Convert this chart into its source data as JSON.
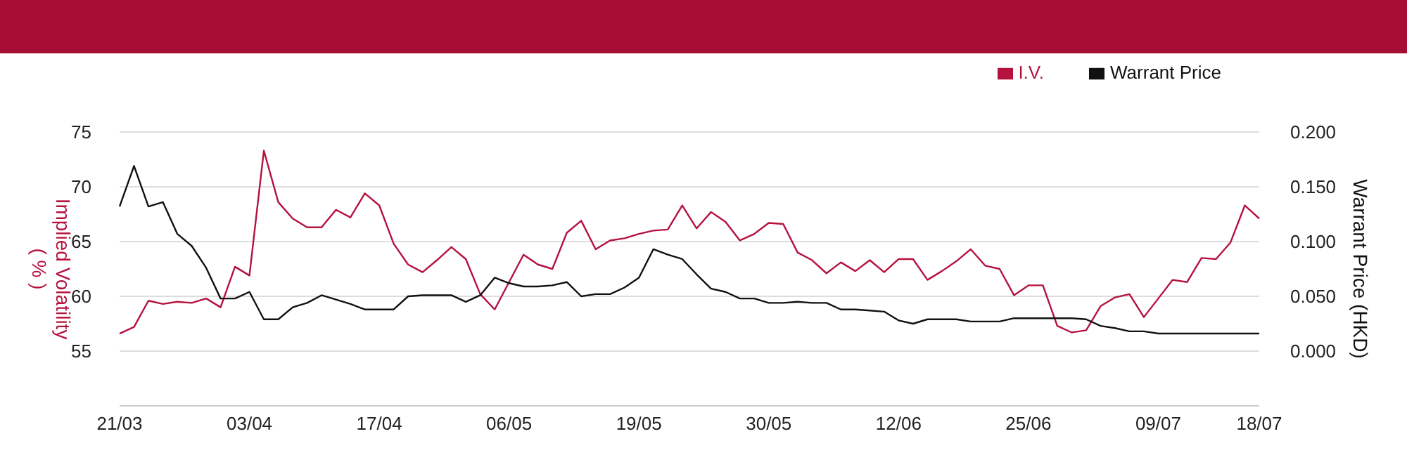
{
  "chart_data": {
    "type": "line",
    "categories": [
      "21/03",
      null,
      null,
      null,
      null,
      null,
      null,
      null,
      null,
      "03/04",
      null,
      null,
      null,
      null,
      null,
      null,
      null,
      null,
      "17/04",
      null,
      null,
      null,
      null,
      null,
      null,
      null,
      null,
      "06/05",
      null,
      null,
      null,
      null,
      null,
      null,
      null,
      null,
      "19/05",
      null,
      null,
      null,
      null,
      null,
      null,
      null,
      null,
      "30/05",
      null,
      null,
      null,
      null,
      null,
      null,
      null,
      null,
      "12/06",
      null,
      null,
      null,
      null,
      null,
      null,
      null,
      null,
      "25/06",
      null,
      null,
      null,
      null,
      null,
      null,
      null,
      null,
      "09/07",
      null,
      null,
      null,
      null,
      null,
      null,
      "18/07"
    ],
    "series": [
      {
        "name": "I.V.",
        "color": "#b5123e",
        "values": [
          56.6,
          57.2,
          59.6,
          59.3,
          59.5,
          59.4,
          59.8,
          59.0,
          62.7,
          61.9,
          73.3,
          68.6,
          67.1,
          66.3,
          66.3,
          67.9,
          67.2,
          69.4,
          68.3,
          64.8,
          62.9,
          62.2,
          63.3,
          64.5,
          63.4,
          60.2,
          58.8,
          61.3,
          63.8,
          62.9,
          62.5,
          65.8,
          66.9,
          64.3,
          65.1,
          65.3,
          65.7,
          66.0,
          66.1,
          68.3,
          66.2,
          67.7,
          66.8,
          65.1,
          65.7,
          66.7,
          66.6,
          64.0,
          63.3,
          62.1,
          63.1,
          62.3,
          63.3,
          62.2,
          63.4,
          63.4,
          61.5,
          62.3,
          63.2,
          64.3,
          62.8,
          62.5,
          60.1,
          61.0,
          61.0,
          57.3,
          56.7,
          56.9,
          59.1,
          59.9,
          60.2,
          58.1,
          59.8,
          61.5,
          61.3,
          63.5,
          63.4,
          64.9,
          68.3,
          67.1
        ]
      },
      {
        "name": "Warrant Price",
        "color": "#111111",
        "axis": "y2",
        "values": [
          0.132,
          0.169,
          0.132,
          0.136,
          0.107,
          0.096,
          0.076,
          0.048,
          0.048,
          0.054,
          0.029,
          0.029,
          0.04,
          0.044,
          0.051,
          0.047,
          0.043,
          0.038,
          0.038,
          0.038,
          0.05,
          0.051,
          0.051,
          0.051,
          0.045,
          0.051,
          0.067,
          0.062,
          0.059,
          0.059,
          0.06,
          0.063,
          0.05,
          0.052,
          0.052,
          0.058,
          0.067,
          0.093,
          0.088,
          0.084,
          0.07,
          0.057,
          0.054,
          0.048,
          0.048,
          0.044,
          0.044,
          0.045,
          0.044,
          0.044,
          0.038,
          0.038,
          0.037,
          0.036,
          0.028,
          0.025,
          0.029,
          0.029,
          0.029,
          0.027,
          0.027,
          0.027,
          0.03,
          0.03,
          0.03,
          0.03,
          0.03,
          0.029,
          0.023,
          0.021,
          0.018,
          0.018,
          0.016,
          0.016,
          0.016,
          0.016,
          0.016,
          0.016,
          0.016,
          0.016
        ]
      }
    ],
    "ylabel": "Implied Volatility\n( % )",
    "y2label": "Warrant Price (HKD)",
    "ylim": [
      50,
      75
    ],
    "yticks": [
      55,
      60,
      65,
      70,
      75
    ],
    "y2lim": [
      -0.05,
      0.2
    ],
    "y2ticks": [
      {
        "value": 0,
        "label": "0.000"
      },
      {
        "value": 0.05,
        "label": "0.050"
      },
      {
        "value": 0.1,
        "label": "0.100"
      },
      {
        "value": 0.15,
        "label": "0.150"
      },
      {
        "value": 0.2,
        "label": "0.200"
      }
    ],
    "grid": "y",
    "legend": "top right",
    "marker": "none",
    "line_style": "solid"
  }
}
